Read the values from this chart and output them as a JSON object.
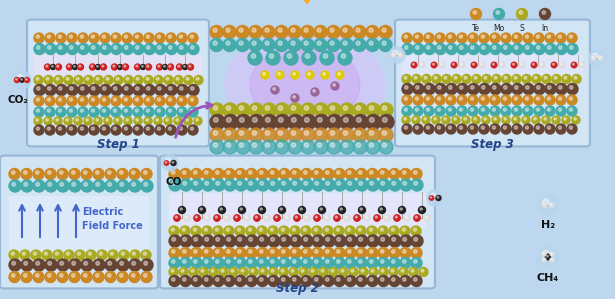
{
  "bg_color": "#bdd8ee",
  "legend_items": [
    {
      "label": "Te",
      "color": "#cc8822"
    },
    {
      "label": "Mo",
      "color": "#44aaaa"
    },
    {
      "label": "S",
      "color": "#aaaa22"
    },
    {
      "label": "In",
      "color": "#664433"
    }
  ],
  "layer_colors": {
    "Te": "#cc8822",
    "Mo": "#44aaaa",
    "S": "#aaaa22",
    "In": "#664433",
    "bond_gray": "#aaaaaa",
    "atom_black": "#222222",
    "atom_red": "#cc2222",
    "atom_white": "#dddddd",
    "atom_gray": "#888888"
  },
  "box_face": "#d8eaf8",
  "box_edge": "#88aacc",
  "sun_color": "#ffaa22",
  "purple_glow": "#9966cc",
  "arrow_purple": "#9955bb"
}
